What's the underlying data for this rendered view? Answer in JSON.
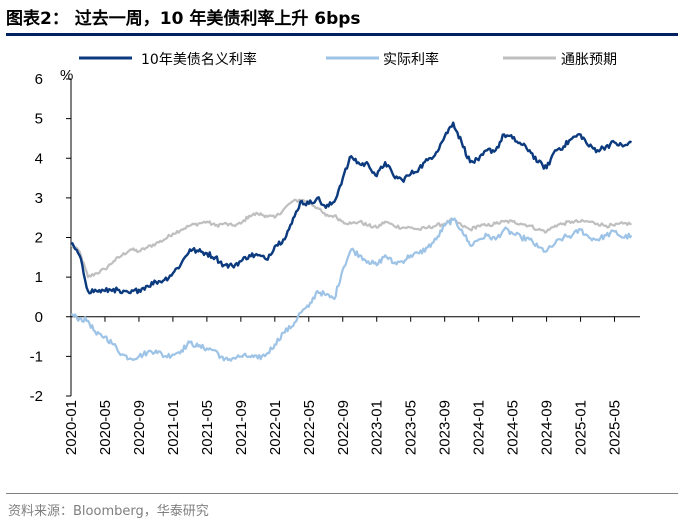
{
  "header": {
    "title": "图表2：  过去一周，10 年美债利率上升 6bps"
  },
  "footer": {
    "source": "资料来源：Bloomberg，华泰研究"
  },
  "chart_data": {
    "type": "line",
    "title": "图表2：过去一周，10 年美债利率上升 6bps",
    "ylabel": "%",
    "ylim": [
      -2,
      6
    ],
    "yticks": [
      "-2",
      "-1",
      "0",
      "1",
      "2",
      "3",
      "4",
      "5",
      "6"
    ],
    "xticks": [
      "2020-01",
      "2020-05",
      "2020-09",
      "2021-01",
      "2021-05",
      "2021-09",
      "2022-01",
      "2022-05",
      "2022-09",
      "2023-01",
      "2023-05",
      "2023-09",
      "2024-01",
      "2024-05",
      "2024-09",
      "2025-01",
      "2025-05"
    ],
    "x": [
      "2020-01",
      "2020-02",
      "2020-03",
      "2020-04",
      "2020-05",
      "2020-06",
      "2020-07",
      "2020-08",
      "2020-09",
      "2020-10",
      "2020-11",
      "2020-12",
      "2021-01",
      "2021-02",
      "2021-03",
      "2021-04",
      "2021-05",
      "2021-06",
      "2021-07",
      "2021-08",
      "2021-09",
      "2021-10",
      "2021-11",
      "2021-12",
      "2022-01",
      "2022-02",
      "2022-03",
      "2022-04",
      "2022-05",
      "2022-06",
      "2022-07",
      "2022-08",
      "2022-09",
      "2022-10",
      "2022-11",
      "2022-12",
      "2023-01",
      "2023-02",
      "2023-03",
      "2023-04",
      "2023-05",
      "2023-06",
      "2023-07",
      "2023-08",
      "2023-09",
      "2023-10",
      "2023-11",
      "2023-12",
      "2024-01",
      "2024-02",
      "2024-03",
      "2024-04",
      "2024-05",
      "2024-06",
      "2024-07",
      "2024-08",
      "2024-09",
      "2024-10",
      "2024-11",
      "2024-12",
      "2025-01",
      "2025-02",
      "2025-03",
      "2025-04",
      "2025-05",
      "2025-06",
      "2025-07"
    ],
    "series": [
      {
        "name": "10年美债名义利率",
        "color": "#0b3a7e",
        "values": [
          1.85,
          1.55,
          0.65,
          0.65,
          0.65,
          0.7,
          0.6,
          0.6,
          0.68,
          0.78,
          0.88,
          0.93,
          1.1,
          1.35,
          1.7,
          1.65,
          1.6,
          1.5,
          1.3,
          1.28,
          1.4,
          1.55,
          1.55,
          1.45,
          1.78,
          1.95,
          2.35,
          2.9,
          2.85,
          3.0,
          2.75,
          2.9,
          3.5,
          4.05,
          3.85,
          3.85,
          3.55,
          3.9,
          3.55,
          3.45,
          3.6,
          3.75,
          3.95,
          4.15,
          4.55,
          4.9,
          4.4,
          3.9,
          3.95,
          4.2,
          4.2,
          4.6,
          4.5,
          4.35,
          4.2,
          3.9,
          3.75,
          4.2,
          4.3,
          4.5,
          4.6,
          4.3,
          4.2,
          4.3,
          4.4,
          4.3,
          4.4
        ]
      },
      {
        "name": "实际利率",
        "color": "#9dc3e6",
        "values": [
          0.05,
          -0.05,
          -0.1,
          -0.45,
          -0.5,
          -0.7,
          -0.95,
          -1.05,
          -1.0,
          -0.9,
          -0.85,
          -1.0,
          -0.95,
          -0.85,
          -0.65,
          -0.75,
          -0.8,
          -0.85,
          -1.1,
          -1.05,
          -1.0,
          -1.0,
          -1.05,
          -0.95,
          -0.7,
          -0.4,
          -0.25,
          0.1,
          0.25,
          0.65,
          0.55,
          0.45,
          1.2,
          1.7,
          1.55,
          1.4,
          1.3,
          1.55,
          1.35,
          1.4,
          1.55,
          1.6,
          1.75,
          1.95,
          2.3,
          2.45,
          2.2,
          1.8,
          1.95,
          2.05,
          1.95,
          2.2,
          2.1,
          2.0,
          1.95,
          1.75,
          1.65,
          1.85,
          2.0,
          2.05,
          2.2,
          2.0,
          1.95,
          2.05,
          2.15,
          2.0,
          2.05
        ]
      },
      {
        "name": "通胀预期",
        "color": "#bfbfbf",
        "values": [
          1.8,
          1.65,
          1.0,
          1.1,
          1.2,
          1.4,
          1.55,
          1.7,
          1.65,
          1.75,
          1.85,
          1.95,
          2.1,
          2.2,
          2.3,
          2.35,
          2.4,
          2.3,
          2.35,
          2.3,
          2.35,
          2.55,
          2.6,
          2.55,
          2.5,
          2.7,
          2.9,
          2.95,
          2.9,
          2.75,
          2.55,
          2.55,
          2.4,
          2.35,
          2.4,
          2.3,
          2.25,
          2.4,
          2.3,
          2.25,
          2.25,
          2.2,
          2.25,
          2.3,
          2.35,
          2.45,
          2.3,
          2.2,
          2.3,
          2.3,
          2.35,
          2.4,
          2.4,
          2.35,
          2.3,
          2.2,
          2.15,
          2.3,
          2.35,
          2.4,
          2.4,
          2.4,
          2.35,
          2.3,
          2.3,
          2.35,
          2.35
        ]
      }
    ]
  }
}
